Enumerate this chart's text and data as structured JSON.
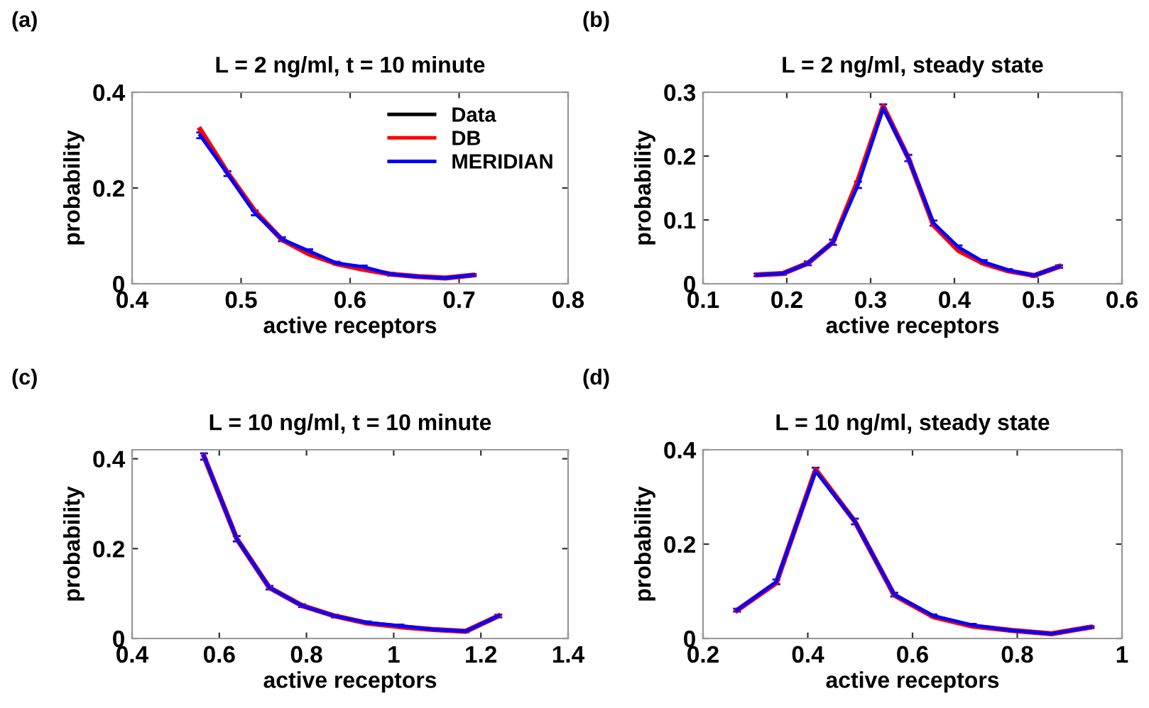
{
  "chart_data": [
    {
      "type": "line",
      "title": "L = 2 ng/ml, t = 10 minute",
      "xlabel": "active receptors",
      "ylabel": "probability",
      "annotations": [
        "(a)"
      ],
      "x": [
        0.4625,
        0.4875,
        0.5125,
        0.5375,
        0.5625,
        0.5875,
        0.6125,
        0.6375,
        0.6625,
        0.6875,
        0.7125
      ],
      "xlim": [
        0.4,
        0.8
      ],
      "xticks": [
        0.4,
        0.5,
        0.6,
        0.7,
        0.8
      ],
      "ylim": [
        0,
        0.4
      ],
      "yticks": [
        0,
        0.2,
        0.4
      ],
      "legend": "top right",
      "grid": false,
      "marker": "none",
      "line_style": "solid",
      "series": [
        {
          "name": "Data",
          "color": "#000000",
          "values": [
            null,
            null,
            null,
            null,
            null,
            null,
            null,
            null,
            null,
            null,
            null
          ]
        },
        {
          "name": "DB",
          "color": "#ff0000",
          "values": [
            0.322,
            0.232,
            0.152,
            0.092,
            0.062,
            0.042,
            0.03,
            0.02,
            0.015,
            0.012,
            0.018
          ]
        },
        {
          "name": "MERIDIAN",
          "color": "#0000ff",
          "values": [
            0.31,
            0.23,
            0.148,
            0.093,
            0.068,
            0.043,
            0.035,
            0.02,
            0.015,
            0.012,
            0.018
          ],
          "errors": [
            0.006,
            0.005,
            0.005,
            0.004,
            0.004,
            0.003,
            0.003,
            0.003,
            0.002,
            0.002,
            0.002
          ]
        }
      ]
    },
    {
      "type": "line",
      "title": "L = 2 ng/ml, steady state",
      "xlabel": "active receptors",
      "ylabel": "probability",
      "annotations": [
        "(b)"
      ],
      "x": [
        0.165,
        0.195,
        0.225,
        0.255,
        0.285,
        0.315,
        0.345,
        0.375,
        0.405,
        0.435,
        0.465,
        0.495,
        0.525
      ],
      "xlim": [
        0.1,
        0.6
      ],
      "xticks": [
        0.1,
        0.2,
        0.3,
        0.4,
        0.5,
        0.6
      ],
      "ylim": [
        0,
        0.3
      ],
      "yticks": [
        0,
        0.1,
        0.2,
        0.3
      ],
      "legend": false,
      "grid": false,
      "marker": "none",
      "line_style": "solid",
      "series": [
        {
          "color": "#000000",
          "values": [
            null,
            null,
            null,
            null,
            null,
            null,
            null,
            null,
            null,
            null,
            null,
            null,
            null
          ]
        },
        {
          "color": "#ff0000",
          "values": [
            0.014,
            0.016,
            0.032,
            0.065,
            0.162,
            0.278,
            0.197,
            0.092,
            0.052,
            0.032,
            0.02,
            0.013,
            0.027
          ]
        },
        {
          "color": "#0000ff",
          "values": [
            0.014,
            0.016,
            0.032,
            0.065,
            0.155,
            0.275,
            0.197,
            0.095,
            0.057,
            0.034,
            0.021,
            0.013,
            0.027
          ],
          "errors": [
            0.002,
            0.002,
            0.003,
            0.004,
            0.005,
            0.006,
            0.005,
            0.004,
            0.003,
            0.003,
            0.002,
            0.002,
            0.002
          ]
        }
      ]
    },
    {
      "type": "line",
      "title": "L = 10 ng/ml, t = 10 minute",
      "xlabel": "active receptors",
      "ylabel": "probability",
      "annotations": [
        "(c)"
      ],
      "x": [
        0.565,
        0.64,
        0.715,
        0.79,
        0.865,
        0.94,
        1.015,
        1.09,
        1.165,
        1.24
      ],
      "xlim": [
        0.4,
        1.4
      ],
      "xticks": [
        0.4,
        0.6,
        0.8,
        1,
        1.2,
        1.4
      ],
      "ylim": [
        0,
        0.42
      ],
      "yticks": [
        0,
        0.2,
        0.4
      ],
      "legend": false,
      "grid": false,
      "marker": "none",
      "line_style": "solid",
      "series": [
        {
          "color": "#000000",
          "values": [
            null,
            null,
            null,
            null,
            null,
            null,
            null,
            null,
            null,
            null
          ]
        },
        {
          "color": "#ff0000",
          "values": [
            0.405,
            0.222,
            0.113,
            0.073,
            0.05,
            0.034,
            0.026,
            0.02,
            0.016,
            0.05
          ]
        },
        {
          "color": "#0000ff",
          "values": [
            0.405,
            0.222,
            0.113,
            0.073,
            0.05,
            0.035,
            0.028,
            0.02,
            0.016,
            0.05
          ],
          "errors": [
            0.007,
            0.006,
            0.004,
            0.003,
            0.003,
            0.003,
            0.003,
            0.002,
            0.002,
            0.003
          ]
        }
      ]
    },
    {
      "type": "line",
      "title": "L = 10 ng/ml, steady state",
      "xlabel": "active receptors",
      "ylabel": "probability",
      "annotations": [
        "(d)"
      ],
      "x": [
        0.265,
        0.34,
        0.415,
        0.49,
        0.565,
        0.64,
        0.715,
        0.79,
        0.865,
        0.94
      ],
      "xlim": [
        0.2,
        1
      ],
      "xticks": [
        0.2,
        0.4,
        0.6,
        0.8,
        1
      ],
      "ylim": [
        0,
        0.4
      ],
      "yticks": [
        0,
        0.2,
        0.4
      ],
      "legend": false,
      "grid": false,
      "marker": "none",
      "line_style": "solid",
      "series": [
        {
          "color": "#000000",
          "values": [
            null,
            null,
            null,
            null,
            null,
            null,
            null,
            null,
            null,
            null
          ]
        },
        {
          "color": "#ff0000",
          "values": [
            0.06,
            0.118,
            0.358,
            0.248,
            0.092,
            0.046,
            0.026,
            0.017,
            0.01,
            0.024
          ]
        },
        {
          "color": "#0000ff",
          "values": [
            0.06,
            0.12,
            0.355,
            0.248,
            0.093,
            0.048,
            0.028,
            0.017,
            0.01,
            0.024
          ],
          "errors": [
            0.003,
            0.005,
            0.007,
            0.006,
            0.004,
            0.003,
            0.003,
            0.002,
            0.002,
            0.002
          ]
        }
      ]
    }
  ]
}
